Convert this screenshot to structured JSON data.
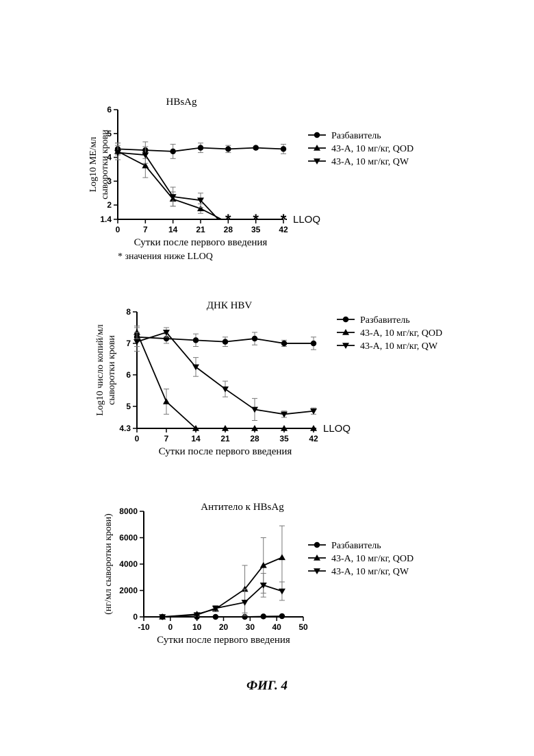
{
  "figure_caption": "ФИГ. 4",
  "chart_data": [
    {
      "type": "line",
      "title": "HBsAg",
      "ylabel_lines": [
        "Log10 МЕ/мл",
        "сыворотки крови"
      ],
      "xlabel": "Сутки после первого введения",
      "note": "* значения ниже LLOQ",
      "lloq_label": "LLOQ",
      "xlim": [
        0,
        42
      ],
      "ylim": [
        1.4,
        6
      ],
      "x_ticks": [
        "0",
        "7",
        "14",
        "21",
        "28",
        "35",
        "42"
      ],
      "y_ticks": [
        "1.4",
        "2",
        "3",
        "4",
        "5",
        "6"
      ],
      "star_x": [
        28,
        35,
        42
      ],
      "series": [
        {
          "name": "Разбавитель",
          "marker": "circle",
          "x": [
            0,
            7,
            14,
            21,
            28,
            35,
            42
          ],
          "y": [
            4.35,
            4.3,
            4.25,
            4.4,
            4.35,
            4.4,
            4.35
          ],
          "err": [
            0.25,
            0.35,
            0.3,
            0.2,
            0.15,
            0.05,
            0.2
          ]
        },
        {
          "name": "43-А, 10 мг/кг, QOD",
          "marker": "triangle-up",
          "x": [
            0,
            7,
            14,
            21,
            26.3
          ],
          "y": [
            4.25,
            3.65,
            2.25,
            1.85,
            1.4
          ],
          "err": [
            0.35,
            0.5,
            0.3,
            0.2,
            0
          ]
        },
        {
          "name": "43-А, 10 мг/кг, QW",
          "marker": "triangle-down",
          "x": [
            0,
            7,
            14,
            21,
            25.5
          ],
          "y": [
            4.2,
            4.1,
            2.35,
            2.2,
            1.4
          ],
          "err": [
            0.3,
            0.35,
            0.4,
            0.3,
            0
          ]
        }
      ],
      "legend_position": "right"
    },
    {
      "type": "line",
      "title": "ДНК HBV",
      "ylabel_lines": [
        "Log10 число копий/мл",
        "сыворотки крови"
      ],
      "xlabel": "Сутки после первого введения",
      "lloq_label": "LLOQ",
      "xlim": [
        0,
        42
      ],
      "ylim": [
        4.3,
        8
      ],
      "x_ticks": [
        "0",
        "7",
        "14",
        "21",
        "28",
        "35",
        "42"
      ],
      "y_ticks": [
        "4.3",
        "5",
        "6",
        "7",
        "8"
      ],
      "series": [
        {
          "name": "Разбавитель",
          "marker": "circle",
          "x": [
            0,
            7,
            14,
            21,
            28,
            35,
            42
          ],
          "y": [
            7.2,
            7.15,
            7.1,
            7.05,
            7.15,
            7.0,
            7.0
          ],
          "err": [
            0.3,
            0.15,
            0.2,
            0.15,
            0.2,
            0.1,
            0.2
          ]
        },
        {
          "name": "43-А, 10 мг/кг, QOD",
          "marker": "triangle-up",
          "x": [
            0,
            7,
            14,
            21,
            28,
            35,
            42
          ],
          "y": [
            7.35,
            5.15,
            4.3,
            4.3,
            4.3,
            4.3,
            4.3
          ],
          "err": [
            0.2,
            0.4,
            0,
            0,
            0,
            0,
            0
          ]
        },
        {
          "name": "43-А, 10 мг/кг, QW",
          "marker": "triangle-down",
          "x": [
            0,
            7,
            14,
            21,
            28,
            35,
            42
          ],
          "y": [
            7.05,
            7.35,
            6.25,
            5.55,
            4.9,
            4.75,
            4.85
          ],
          "err": [
            0.3,
            0.15,
            0.3,
            0.25,
            0.35,
            0.1,
            0.1
          ]
        }
      ],
      "legend_position": "right"
    },
    {
      "type": "line",
      "title": "Антитело к HBsAg",
      "ylabel": "(нг/мл сыворотки крови)",
      "xlabel": "Сутки после первого введения",
      "xlim": [
        -10,
        50
      ],
      "ylim": [
        0,
        8000
      ],
      "x_ticks": [
        "-10",
        "0",
        "10",
        "20",
        "30",
        "40",
        "50"
      ],
      "y_ticks": [
        "0",
        "2000",
        "4000",
        "6000",
        "8000"
      ],
      "series": [
        {
          "name": "Разбавитель",
          "marker": "circle",
          "x": [
            -3,
            10,
            17,
            28,
            35,
            42
          ],
          "y": [
            0,
            0,
            0,
            0,
            30,
            50
          ],
          "err": [
            0,
            0,
            0,
            0,
            0,
            0
          ]
        },
        {
          "name": "43-А, 10 мг/кг, QOD",
          "marker": "triangle-up",
          "x": [
            -3,
            10,
            17,
            28,
            35,
            42
          ],
          "y": [
            0,
            200,
            600,
            2100,
            3900,
            4500
          ],
          "err": [
            0,
            100,
            200,
            1800,
            2100,
            2400
          ]
        },
        {
          "name": "43-А, 10 мг/кг, QW",
          "marker": "triangle-down",
          "x": [
            -3,
            10,
            17,
            28,
            35,
            42
          ],
          "y": [
            0,
            150,
            650,
            1100,
            2400,
            1950
          ],
          "err": [
            0,
            100,
            200,
            1000,
            900,
            700
          ]
        }
      ],
      "legend_position": "right"
    }
  ]
}
